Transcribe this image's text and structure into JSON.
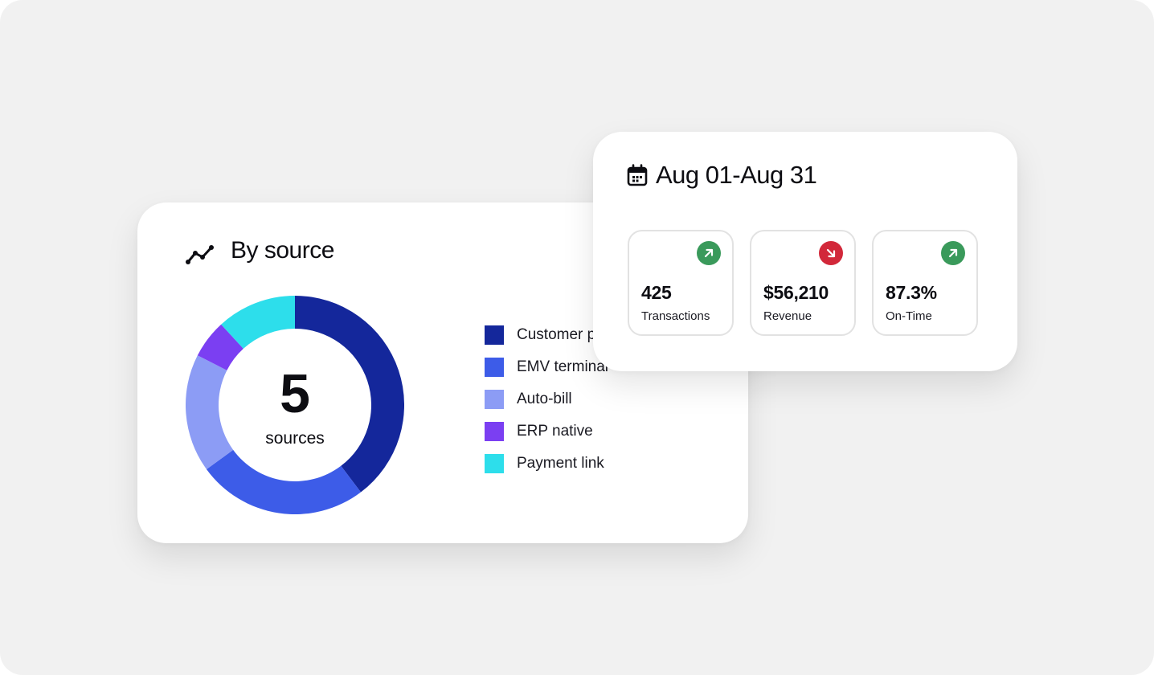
{
  "source_widget": {
    "title": "By source",
    "icon": "trend-line-icon",
    "center_value": "5",
    "center_label": "sources",
    "legend": [
      {
        "label": "Customer portal",
        "color": "#14279b"
      },
      {
        "label": "EMV terminal",
        "color": "#3d5ce8"
      },
      {
        "label": "Auto-bill",
        "color": "#8c9cf5"
      },
      {
        "label": "ERP native",
        "color": "#7b3ff2"
      },
      {
        "label": "Payment link",
        "color": "#2ddeeb"
      }
    ]
  },
  "chart_data": {
    "type": "pie",
    "categories": [
      "Customer portal",
      "EMV terminal",
      "Auto-bill",
      "ERP native",
      "Payment link"
    ],
    "values": [
      39.7,
      25.3,
      17.5,
      5.7,
      11.8
    ],
    "colors": [
      "#14279b",
      "#3d5ce8",
      "#8c9cf5",
      "#7b3ff2",
      "#2ddeeb"
    ],
    "donut": true,
    "legend": "right"
  },
  "period_widget": {
    "icon": "calendar-icon",
    "date_range": "Aug 01-Aug 31",
    "metrics": [
      {
        "value": "425",
        "label": "Transactions",
        "trend": "up",
        "trend_icon": "arrow-up-right-icon",
        "trend_color": "#3a9a5b"
      },
      {
        "value": "$56,210",
        "label": "Revenue",
        "trend": "down",
        "trend_icon": "arrow-down-right-icon",
        "trend_color": "#d2283a"
      },
      {
        "value": "87.3%",
        "label": "On-Time",
        "trend": "up",
        "trend_icon": "arrow-up-right-icon",
        "trend_color": "#3a9a5b"
      }
    ]
  }
}
